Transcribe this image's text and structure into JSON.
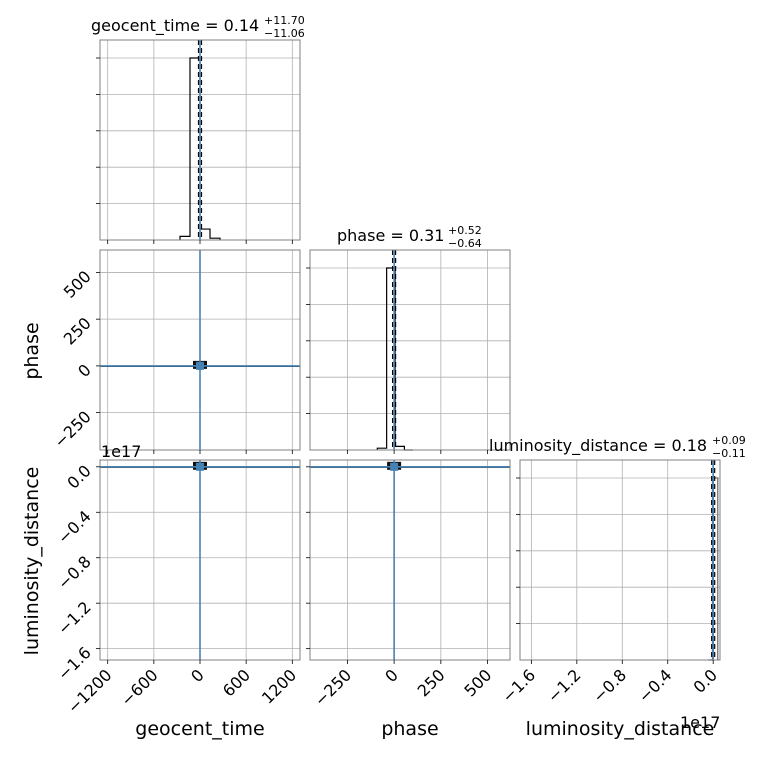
{
  "colors": {
    "truth": "#4682b4",
    "grid": "#b0b0b0",
    "frame": "#808080",
    "hist": "#000000"
  },
  "chart_data": {
    "type": "corner",
    "parameters": [
      "geocent_time",
      "phase",
      "luminosity_distance"
    ],
    "titles": [
      {
        "main": "geocent_time = 0.14",
        "plus": "+11.70",
        "minus": "−11.06"
      },
      {
        "main": "phase = 0.31",
        "plus": "+0.52",
        "minus": "−0.64"
      },
      {
        "main": "luminosity_distance = 0.18",
        "plus": "+0.09",
        "minus": "−0.11"
      }
    ],
    "axis_labels": {
      "geocent_time": "geocent_time",
      "phase": "phase",
      "luminosity_distance": "luminosity_distance"
    },
    "ranges": {
      "geocent_time": [
        -1300,
        1300
      ],
      "phase": [
        -450,
        620
      ],
      "luminosity_distance": [
        -17.0,
        0.6
      ]
    },
    "ticks": {
      "geocent_time": {
        "values": [
          -1200,
          -600,
          0,
          600,
          1200
        ],
        "labels": [
          "−1200",
          "−600",
          "0",
          "600",
          "1200"
        ]
      },
      "phase": {
        "values": [
          -250,
          0,
          250,
          500
        ],
        "labels": [
          "−250",
          "0",
          "250",
          "500"
        ]
      },
      "luminosity_distance": {
        "values": [
          -16,
          -12,
          -8,
          -4,
          0
        ],
        "labels": [
          "−1.6",
          "−1.2",
          "−0.8",
          "−0.4",
          "0.0"
        ]
      }
    },
    "offset_text": "1e17",
    "truths": {
      "geocent_time": 0,
      "phase": 0,
      "luminosity_distance": 0
    },
    "hist_1d": {
      "geocent_time": {
        "edges": [
          -260,
          -130,
          0,
          130,
          260
        ],
        "counts": [
          0.02,
          1.0,
          0.06,
          0.01
        ]
      },
      "phase": {
        "edges": [
          -90,
          -40,
          5,
          55,
          100
        ],
        "counts": [
          0.01,
          1.0,
          0.02,
          0.0
        ]
      },
      "luminosity_distance": {
        "edges": [
          -0.4,
          -0.05,
          0.4
        ],
        "counts": [
          0.0,
          1.0
        ]
      }
    },
    "grid": true
  }
}
